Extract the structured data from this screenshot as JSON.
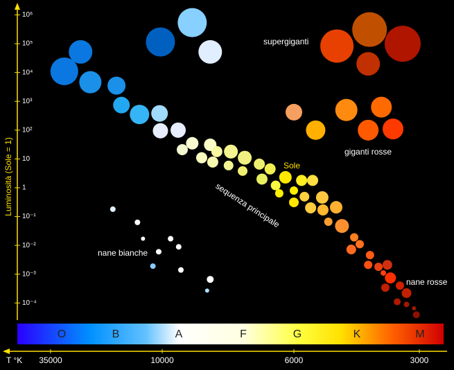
{
  "chart_data": {
    "type": "scatter",
    "y_label": "Luminosità (Sole = 1)",
    "x_label": "T °K",
    "ylim": [
      3e-05,
      2000000
    ],
    "ylog": true,
    "yticks": [
      {
        "value": 1000000,
        "label": "10⁶"
      },
      {
        "value": 100000,
        "label": "10⁵"
      },
      {
        "value": 10000,
        "label": "10⁴"
      },
      {
        "value": 1000,
        "label": "10³"
      },
      {
        "value": 100,
        "label": "10²"
      },
      10,
      1,
      {
        "value": 0.1,
        "label": "10⁻¹"
      },
      {
        "value": 0.01,
        "label": "10⁻²"
      },
      {
        "value": 0.001,
        "label": "10⁻³"
      },
      {
        "value": 0.0001,
        "label": "10⁻⁴"
      }
    ],
    "xlim": [
      50000,
      2600
    ],
    "xticks": [
      35000,
      10000,
      6000,
      3000
    ],
    "spectral_classes": [
      "O",
      "B",
      "A",
      "F",
      "G",
      "K",
      "M"
    ],
    "annotations": [
      "supergiganti",
      "giganti rosse",
      "sequenza principale",
      "nane bianche",
      "nane rosse",
      "Sole"
    ],
    "x": [
      25000,
      30000,
      10200,
      8900,
      8300,
      22400,
      16700,
      15800,
      12900,
      10300,
      10200,
      9400,
      9250,
      8900,
      8580,
      8300,
      8220,
      8090,
      7660,
      7730,
      7260,
      7320,
      6860,
      6790,
      6580,
      6440,
      6200,
      6350,
      6000,
      5750,
      6000,
      5410,
      5660,
      5470,
      5130,
      5110,
      4750,
      4960,
      4600,
      4300,
      4170,
      4370,
      3940,
      3980,
      3760,
      3580,
      3660,
      3520,
      3340,
      3620,
      3220,
      3390,
      3220,
      3090,
      3050,
      6000,
      5320,
      4490,
      3700,
      3980,
      3470,
      4730,
      3950,
      3980,
      3290,
      17400,
      13200,
      12400,
      9680,
      9380,
      10400,
      11100,
      9300,
      8300,
      8400
    ],
    "values": [
      52000,
      11000,
      115000,
      540000,
      52000,
      4600,
      3500,
      740,
      350,
      380,
      95,
      100,
      21,
      35,
      11,
      31,
      7.8,
      18,
      18,
      5.9,
      11,
      3.8,
      6.6,
      2.0,
      4.5,
      1.2,
      2.3,
      0.64,
      0.8,
      1.8,
      0.31,
      1.8,
      0.49,
      0.2,
      0.46,
      0.17,
      0.21,
      0.066,
      0.047,
      0.019,
      0.011,
      0.0072,
      0.0046,
      0.0021,
      0.0018,
      0.0021,
      0.0011,
      0.00074,
      0.0004,
      0.00034,
      0.00022,
      0.00011,
      8.9e-05,
      6.5e-05,
      3.9e-05,
      420,
      100,
      500,
      630,
      100,
      110,
      83000,
      310000,
      20000,
      100000,
      0.18,
      0.063,
      0.017,
      0.017,
      0.0089,
      0.006,
      0.0019,
      0.0014,
      0.00066,
      0.00027
    ],
    "sizes": [
      17,
      20,
      21,
      21,
      17,
      16,
      13,
      12,
      14,
      12,
      11,
      11,
      8,
      9,
      8,
      9,
      8,
      8,
      10,
      7,
      10,
      7,
      8,
      8,
      8,
      7,
      9,
      6,
      6,
      8,
      7,
      8,
      7,
      8,
      9,
      8,
      9,
      6,
      10,
      6,
      6,
      7,
      6,
      6,
      6,
      7,
      4,
      8,
      6,
      6,
      7,
      5,
      4,
      3,
      5,
      12,
      14,
      16,
      15,
      15,
      15,
      24,
      25,
      17,
      26,
      4,
      4,
      3,
      4,
      4,
      4,
      4,
      4,
      5,
      3
    ],
    "colors": [
      "#0a78e0",
      "#0a78e0",
      "#0060c0",
      "#87d0ff",
      "#e0eeff",
      "#1a90e8",
      "#1a90e8",
      "#22a8f0",
      "#35b5f5",
      "#a0daff",
      "#e6eeff",
      "#e6eeff",
      "#f2f8d0",
      "#f8fcd0",
      "#fafcc0",
      "#fafcc8",
      "#f8f8b0",
      "#f8f8a0",
      "#f5f590",
      "#f2f590",
      "#f0f080",
      "#f0f070",
      "#eef070",
      "#e8f060",
      "#f0f050",
      "#f8f840",
      "#ffe800",
      "#fff000",
      "#ffee00",
      "#ffee20",
      "#ffe600",
      "#ffe040",
      "#ffd040",
      "#ffcc40",
      "#ffc840",
      "#ffb830",
      "#ffb030",
      "#ff9e30",
      "#ff9030",
      "#ff8020",
      "#ff7020",
      "#ff6a20",
      "#ff5a18",
      "#ff5010",
      "#e84010",
      "#d03010",
      "#ff4010",
      "#ff3000",
      "#d02000",
      "#c02000",
      "#c02000",
      "#b01800",
      "#a01800",
      "#a01800",
      "#901000",
      "#f5a060",
      "#ffb000",
      "#ff8a10",
      "#ff6a00",
      "#ff5a00",
      "#ff3a00",
      "#e84000",
      "#c05000",
      "#c03000",
      "#b01500",
      "#e0f0ff",
      "#ffffff",
      "#ffffff",
      "#ffffff",
      "#ffffff",
      "#ffffff",
      "#88ccff",
      "#ffffff",
      "#ffffff",
      "#aadfff"
    ]
  }
}
